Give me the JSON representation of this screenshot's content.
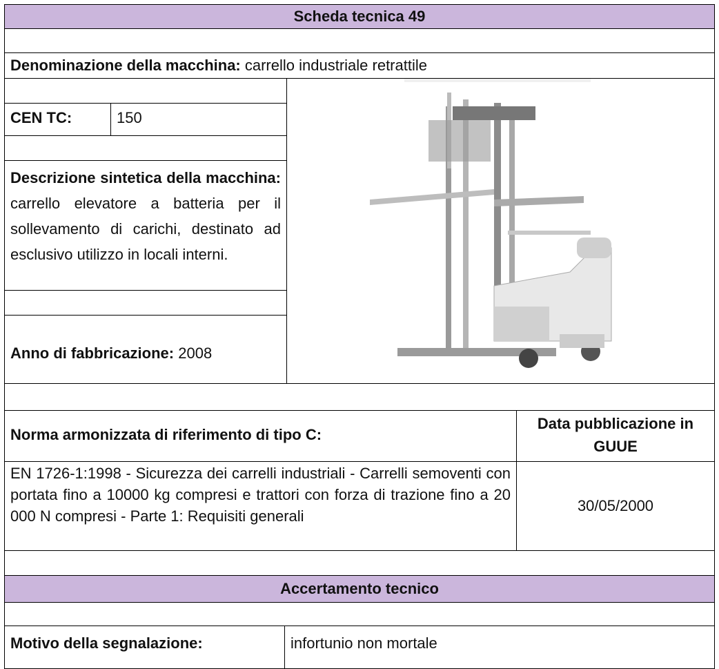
{
  "header": {
    "title": "Scheda tecnica 49"
  },
  "machine": {
    "name_label": "Denominazione della macchina:",
    "name": "carrello industriale retrattile",
    "cen_tc_label": "CEN TC:",
    "cen_tc": 150,
    "description_label": "Descrizione sintetica della macchina:",
    "description": "carrello elevatore a batteria per il sollevamento di carichi, destinato ad esclusivo utilizzo in locali interni.",
    "year_label": "Anno di fabbricazione:",
    "year": 2008
  },
  "standard": {
    "header": "Norma armonizzata di riferimento di tipo C:",
    "date_header": "Data pubblicazione in GUUE",
    "text": "EN 1726-1:1998 - Sicurezza dei carrelli industriali - Carrelli semoventi con portata fino a 10000 kg compresi e trattori con forza di trazione fino a 20 000 N compresi - Parte 1: Requisiti generali",
    "date": "30/05/2000"
  },
  "assessment": {
    "title": "Accertamento tecnico",
    "reason_label": "Motivo della segnalazione:",
    "reason": "infortunio non mortale"
  }
}
